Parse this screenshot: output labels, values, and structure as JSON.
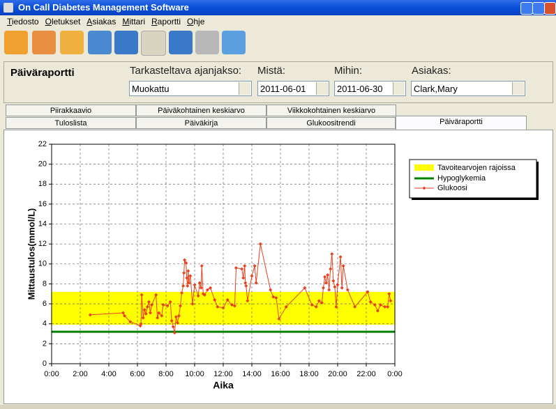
{
  "window": {
    "title": "On Call Diabetes Management Software"
  },
  "menu": [
    "Tiedosto",
    "Oletukset",
    "Asiakas",
    "Mittari",
    "Raportti",
    "Ohje"
  ],
  "report_panel": {
    "heading": "Päiväraportti",
    "fields": [
      {
        "label": "Tarkasteltava ajanjakso:",
        "value": "Muokattu"
      },
      {
        "label": "Mistä:",
        "value": "2011-06-01"
      },
      {
        "label": "Mihin:",
        "value": "2011-06-30"
      },
      {
        "label": "Asiakas:",
        "value": "Clark,Mary"
      }
    ]
  },
  "tabs": {
    "back_row": [
      "Piirakkaavio",
      "Päiväkohtainen keskiarvo",
      "Viikkokohtainen keskiarvo"
    ],
    "front_row": [
      "Tuloslista",
      "Päiväkirja",
      "Glukoositrendi",
      "Päiväraportti"
    ]
  },
  "chart_data": {
    "type": "line",
    "y_label": "Mittaustulos(mmol/L)",
    "x_label": "Aika",
    "ylim": [
      0,
      22
    ],
    "yticks": [
      0,
      2,
      4,
      6,
      8,
      10,
      12,
      14,
      16,
      18,
      20,
      22
    ],
    "xlim": [
      0,
      24
    ],
    "xticks": [
      {
        "value": 0,
        "label": "0:00"
      },
      {
        "value": 2,
        "label": "2:00"
      },
      {
        "value": 4,
        "label": "4:00"
      },
      {
        "value": 6,
        "label": "6:00"
      },
      {
        "value": 8,
        "label": "8:00"
      },
      {
        "value": 10,
        "label": "10:00"
      },
      {
        "value": 12,
        "label": "12:00"
      },
      {
        "value": 14,
        "label": "14:00"
      },
      {
        "value": 16,
        "label": "16:00"
      },
      {
        "value": 18,
        "label": "18:00"
      },
      {
        "value": 20,
        "label": "20:00"
      },
      {
        "value": 22,
        "label": "22:00"
      },
      {
        "value": 24,
        "label": "0:00"
      }
    ],
    "grid": true,
    "target_range": {
      "name": "Tavoitearvojen rajoissa",
      "color": "#ffff00",
      "low": 3.9,
      "high": 7.2
    },
    "hypoglycemia": {
      "name": "Hypoglykemia",
      "color": "#008000",
      "value": 3.2
    },
    "x": [
      2.7,
      5.0,
      5.1,
      5.5,
      6.2,
      6.25,
      6.3,
      6.4,
      6.5,
      6.6,
      6.7,
      6.8,
      6.9,
      7.0,
      7.3,
      7.4,
      7.5,
      7.7,
      7.8,
      8.1,
      8.3,
      8.4,
      8.5,
      8.6,
      8.7,
      8.8,
      8.9,
      9.0,
      9.1,
      9.2,
      9.25,
      9.3,
      9.4,
      9.45,
      9.5,
      9.55,
      9.6,
      9.7,
      9.85,
      10.0,
      10.25,
      10.35,
      10.45,
      10.5,
      10.6,
      10.7,
      10.9,
      11.1,
      11.4,
      11.6,
      12.0,
      12.3,
      12.6,
      12.8,
      12.9,
      13.3,
      13.4,
      13.5,
      13.55,
      13.6,
      13.7,
      14.0,
      14.2,
      14.3,
      14.6,
      15.3,
      15.5,
      15.7,
      15.9,
      16.4,
      17.7,
      18.2,
      18.5,
      18.7,
      18.9,
      19.0,
      19.1,
      19.2,
      19.3,
      19.4,
      19.5,
      19.6,
      19.7,
      19.8,
      19.9,
      20.0,
      20.2,
      20.3,
      20.4,
      20.7,
      21.2,
      22.1,
      22.3,
      22.6,
      22.8,
      23.0,
      23.3,
      23.5,
      23.6,
      23.7
    ],
    "series": [
      {
        "name": "Glukoosi",
        "color": "#e8401c",
        "values": [
          4.9,
          5.1,
          4.8,
          4.2,
          3.8,
          4.0,
          6.9,
          4.6,
          5.4,
          5.0,
          5.7,
          6.2,
          5.1,
          5.9,
          6.9,
          4.6,
          5.1,
          4.8,
          5.9,
          5.8,
          6.2,
          4.3,
          3.7,
          3.1,
          4.7,
          4.1,
          4.8,
          5.8,
          7.1,
          7.8,
          9.1,
          10.4,
          10.1,
          8.6,
          7.8,
          9.3,
          8.1,
          8.8,
          6.0,
          7.9,
          6.8,
          8.1,
          7.6,
          9.8,
          7.0,
          6.9,
          7.4,
          7.6,
          6.4,
          5.7,
          5.6,
          6.4,
          5.9,
          5.8,
          9.6,
          9.5,
          8.6,
          9.8,
          8.1,
          7.8,
          6.3,
          8.8,
          9.8,
          8.1,
          12.0,
          7.4,
          6.7,
          6.6,
          4.5,
          5.7,
          7.6,
          5.9,
          5.7,
          6.3,
          6.1,
          7.6,
          8.7,
          8.1,
          8.9,
          7.4,
          9.5,
          11.0,
          8.3,
          7.7,
          5.7,
          7.9,
          10.7,
          7.6,
          9.8,
          7.4,
          5.7,
          7.2,
          6.2,
          5.9,
          5.3,
          5.9,
          5.7,
          5.7,
          7.0,
          6.3
        ]
      }
    ]
  }
}
